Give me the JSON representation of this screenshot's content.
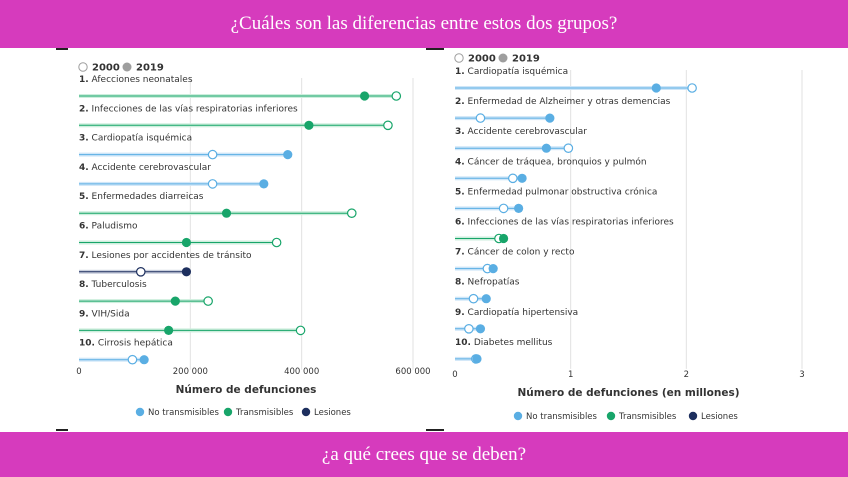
{
  "header": {
    "title": "¿Cuáles son las diferencias entre estos dos grupos?"
  },
  "footer": {
    "question": "¿a qué crees que se deben?"
  },
  "colors": {
    "banner": "#d63bbd",
    "no_transmisibles": "#5aaee3",
    "transmisibles": "#18a56a",
    "lesiones": "#1d2f5e",
    "legend_2019": "#9e9e9e"
  },
  "chart_data": [
    {
      "type": "dumbbell",
      "legend_years": [
        "2000",
        "2019"
      ],
      "xlabel": "Número de defunciones",
      "xlim": [
        0,
        600000
      ],
      "ticks": [
        {
          "value": 0,
          "label": "0"
        },
        {
          "value": 200000,
          "label": "200 000"
        },
        {
          "value": 400000,
          "label": "400 000"
        },
        {
          "value": 600000,
          "label": "600 000"
        }
      ],
      "categories": [
        {
          "rank": "1.",
          "label": "Afecciones neonatales",
          "group": "transmisibles",
          "v2000": 570000,
          "v2019": 513000
        },
        {
          "rank": "2.",
          "label": "Infecciones de las vías respiratorias inferiores",
          "group": "transmisibles",
          "v2000": 555000,
          "v2019": 413000
        },
        {
          "rank": "3.",
          "label": "Cardiopatía isquémica",
          "group": "no_transmisibles",
          "v2000": 240000,
          "v2019": 375000
        },
        {
          "rank": "4.",
          "label": "Accidente cerebrovascular",
          "group": "no_transmisibles",
          "v2000": 240000,
          "v2019": 332000
        },
        {
          "rank": "5.",
          "label": "Enfermedades diarreicas",
          "group": "transmisibles",
          "v2000": 490000,
          "v2019": 265000
        },
        {
          "rank": "6.",
          "label": "Paludismo",
          "group": "transmisibles",
          "v2000": 355000,
          "v2019": 193000
        },
        {
          "rank": "7.",
          "label": "Lesiones por accidentes de tránsito",
          "group": "lesiones",
          "v2000": 111000,
          "v2019": 193000
        },
        {
          "rank": "8.",
          "label": "Tuberculosis",
          "group": "transmisibles",
          "v2000": 232000,
          "v2019": 173000
        },
        {
          "rank": "9.",
          "label": "VIH/Sida",
          "group": "transmisibles",
          "v2000": 398000,
          "v2019": 161000
        },
        {
          "rank": "10.",
          "label": "Cirrosis hepática",
          "group": "no_transmisibles",
          "v2000": 96000,
          "v2019": 117000
        }
      ],
      "legend": [
        {
          "key": "no_transmisibles",
          "label": "No transmisibles"
        },
        {
          "key": "transmisibles",
          "label": "Transmisibles"
        },
        {
          "key": "lesiones",
          "label": "Lesiones"
        }
      ]
    },
    {
      "type": "dumbbell",
      "legend_years": [
        "2000",
        "2019"
      ],
      "xlabel": "Número de defunciones (en millones)",
      "xlim": [
        0,
        3
      ],
      "ticks": [
        {
          "value": 0,
          "label": "0"
        },
        {
          "value": 1,
          "label": "1"
        },
        {
          "value": 2,
          "label": "2"
        },
        {
          "value": 3,
          "label": "3"
        }
      ],
      "categories": [
        {
          "rank": "1.",
          "label": "Cardiopatía isquémica",
          "group": "no_transmisibles",
          "v2000": 2.05,
          "v2019": 1.74
        },
        {
          "rank": "2.",
          "label": "Enfermedad de Alzheimer y otras demencias",
          "group": "no_transmisibles",
          "v2000": 0.22,
          "v2019": 0.82
        },
        {
          "rank": "3.",
          "label": "Accidente cerebrovascular",
          "group": "no_transmisibles",
          "v2000": 0.98,
          "v2019": 0.79
        },
        {
          "rank": "4.",
          "label": "Cáncer de tráquea, bronquios y pulmón",
          "group": "no_transmisibles",
          "v2000": 0.5,
          "v2019": 0.58
        },
        {
          "rank": "5.",
          "label": "Enfermedad pulmonar obstructiva crónica",
          "group": "no_transmisibles",
          "v2000": 0.42,
          "v2019": 0.55
        },
        {
          "rank": "6.",
          "label": "Infecciones de las vías respiratorias inferiores",
          "group": "transmisibles",
          "v2000": 0.38,
          "v2019": 0.42
        },
        {
          "rank": "7.",
          "label": "Cáncer de colon y recto",
          "group": "no_transmisibles",
          "v2000": 0.28,
          "v2019": 0.33
        },
        {
          "rank": "8.",
          "label": "Nefropatías",
          "group": "no_transmisibles",
          "v2000": 0.16,
          "v2019": 0.27
        },
        {
          "rank": "9.",
          "label": "Cardiopatía hipertensiva",
          "group": "no_transmisibles",
          "v2000": 0.12,
          "v2019": 0.22
        },
        {
          "rank": "10.",
          "label": "Diabetes mellitus",
          "group": "no_transmisibles",
          "v2000": 0.18,
          "v2019": 0.19
        }
      ],
      "legend": [
        {
          "key": "no_transmisibles",
          "label": "No transmisibles"
        },
        {
          "key": "transmisibles",
          "label": "Transmisibles"
        },
        {
          "key": "lesiones",
          "label": "Lesiones"
        }
      ]
    }
  ]
}
